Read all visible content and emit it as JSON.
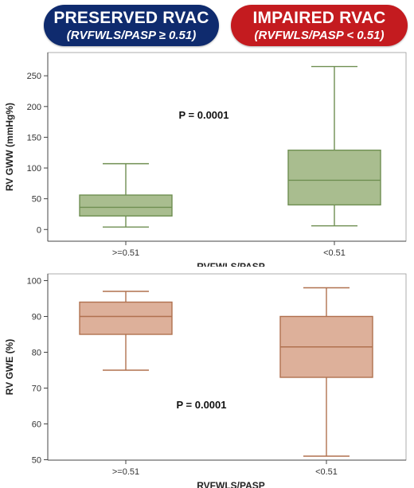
{
  "header": {
    "left": {
      "title": "PRESERVED RVAC",
      "subtitle": "(RVFWLS/PASP ≥ 0.51)",
      "color": "#0f2b6e"
    },
    "right": {
      "title": "IMPAIRED RVAC",
      "subtitle": "(RVFWLS/PASP < 0.51)",
      "color": "#c41b1f"
    }
  },
  "chart_data": [
    {
      "type": "box",
      "ylabel": "RV GWW (mmHg%)",
      "xlabel": "RVFWLS/PASP",
      "categories": [
        ">=0.51",
        "<0.51"
      ],
      "ylim": [
        -10,
        280
      ],
      "yticks": [
        0,
        50,
        100,
        150,
        200,
        250
      ],
      "box_fill": "#a9bd8f",
      "box_stroke": "#6f8f52",
      "annotation": "P = 0.0001",
      "boxes": [
        {
          "min": 4,
          "q1": 22,
          "median": 36,
          "q3": 56,
          "max": 107
        },
        {
          "min": 6,
          "q1": 40,
          "median": 80,
          "q3": 129,
          "max": 265
        }
      ]
    },
    {
      "type": "box",
      "ylabel": "RV GWE (%)",
      "xlabel": "RVFWLS/PASP",
      "categories": [
        ">=0.51",
        "<0.51"
      ],
      "ylim": [
        49,
        101
      ],
      "yticks": [
        50,
        60,
        70,
        80,
        90,
        100
      ],
      "box_fill": "#ddb09a",
      "box_stroke": "#b0714f",
      "annotation": "P = 0.0001",
      "boxes": [
        {
          "min": 75,
          "q1": 85,
          "median": 90,
          "q3": 94,
          "max": 97
        },
        {
          "min": 51,
          "q1": 73,
          "median": 81.5,
          "q3": 90,
          "max": 98
        }
      ]
    }
  ]
}
